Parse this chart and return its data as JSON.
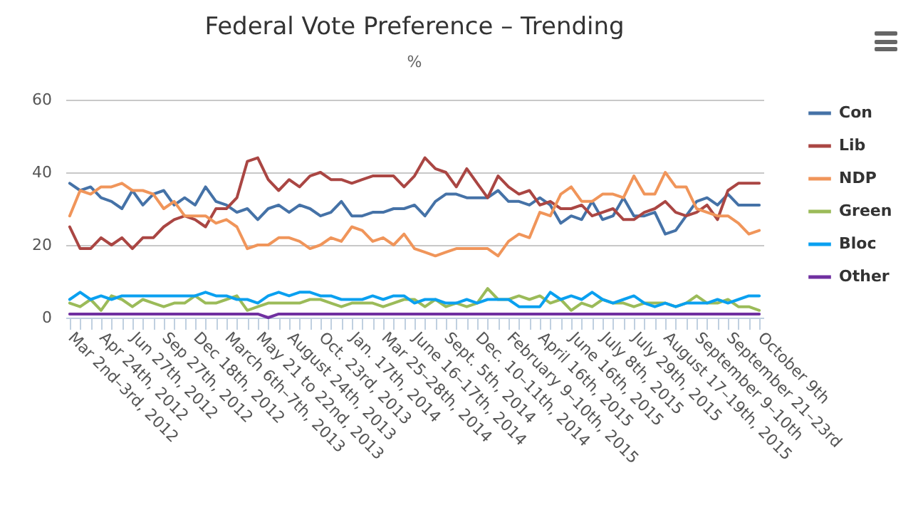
{
  "chart_data": {
    "type": "line",
    "title": "Federal Vote Preference – Trending",
    "subtitle": "%",
    "categories": [
      "Mar 2nd–3rd, 2012",
      null,
      null,
      "Apr 24th, 2012",
      null,
      null,
      "Jun 27th, 2012",
      null,
      null,
      "Sep 27th, 2012",
      null,
      null,
      "Dec 18th, 2012",
      null,
      null,
      "March 6th–7th, 2013",
      null,
      null,
      "May 21 to 22nd, 2013",
      null,
      null,
      "August 24th, 2013",
      null,
      null,
      "Oct. 23rd, 2013",
      null,
      null,
      "Jan. 17th, 2014",
      null,
      null,
      "Mar 25–28th, 2014",
      null,
      null,
      "June 16–17th, 2014",
      null,
      null,
      "Sept. 5th, 2014",
      null,
      null,
      "Dec. 10–11th, 2014",
      null,
      null,
      "February 9–10th, 2015",
      null,
      null,
      "April 16th, 2015",
      null,
      null,
      "June 16th, 2015",
      null,
      null,
      "July 8th, 2015",
      null,
      null,
      "July 29th, 2015",
      null,
      null,
      "August 17–19th, 2015",
      null,
      null,
      "September 9–10th",
      null,
      null,
      "September 21–23rd",
      null,
      null,
      "October 9th"
    ],
    "series": [
      {
        "name": "Con",
        "color": "#4572a7",
        "values": [
          37,
          35,
          36,
          33,
          32,
          30,
          35,
          31,
          34,
          35,
          31,
          33,
          31,
          36,
          32,
          31,
          29,
          30,
          27,
          30,
          31,
          29,
          31,
          30,
          28,
          29,
          32,
          28,
          28,
          29,
          29,
          30,
          30,
          31,
          28,
          32,
          34,
          34,
          33,
          33,
          33,
          35,
          32,
          32,
          31,
          33,
          31,
          26,
          28,
          27,
          32,
          27,
          28,
          33,
          28,
          28,
          29,
          23,
          24,
          28,
          32,
          33,
          31,
          34,
          31,
          31,
          31
        ]
      },
      {
        "name": "Lib",
        "color": "#aa4643",
        "values": [
          25,
          19,
          19,
          22,
          20,
          22,
          19,
          22,
          22,
          25,
          27,
          28,
          27,
          25,
          30,
          30,
          33,
          43,
          44,
          38,
          35,
          38,
          36,
          39,
          40,
          38,
          38,
          37,
          38,
          39,
          39,
          39,
          36,
          39,
          44,
          41,
          40,
          36,
          41,
          37,
          33,
          39,
          36,
          34,
          35,
          31,
          32,
          30,
          30,
          31,
          28,
          29,
          30,
          27,
          27,
          29,
          30,
          32,
          29,
          28,
          29,
          31,
          27,
          35,
          37,
          37,
          37
        ]
      },
      {
        "name": "NDP",
        "color": "#f0955a",
        "values": [
          28,
          35,
          34,
          36,
          36,
          37,
          35,
          35,
          34,
          30,
          32,
          28,
          28,
          28,
          26,
          27,
          25,
          19,
          20,
          20,
          22,
          22,
          21,
          19,
          20,
          22,
          21,
          25,
          24,
          21,
          22,
          20,
          23,
          19,
          18,
          17,
          18,
          19,
          19,
          19,
          19,
          17,
          21,
          23,
          22,
          29,
          28,
          34,
          36,
          32,
          32,
          34,
          34,
          33,
          39,
          34,
          34,
          40,
          36,
          36,
          30,
          29,
          28,
          28,
          26,
          23,
          24
        ]
      },
      {
        "name": "Green",
        "color": "#9bbb59",
        "values": [
          4,
          3,
          5,
          2,
          6,
          5,
          3,
          5,
          4,
          3,
          4,
          4,
          6,
          4,
          4,
          5,
          6,
          2,
          3,
          4,
          4,
          4,
          4,
          5,
          5,
          4,
          3,
          4,
          4,
          4,
          3,
          4,
          5,
          5,
          3,
          5,
          3,
          4,
          3,
          4,
          8,
          5,
          5,
          6,
          5,
          6,
          4,
          5,
          2,
          4,
          3,
          5,
          4,
          4,
          3,
          4,
          4,
          4,
          3,
          4,
          6,
          4,
          4,
          5,
          3,
          3,
          2
        ]
      },
      {
        "name": "Bloc",
        "color": "#0aa0f0",
        "values": [
          5,
          7,
          5,
          6,
          5,
          6,
          6,
          6,
          6,
          6,
          6,
          6,
          6,
          7,
          6,
          6,
          5,
          5,
          4,
          6,
          7,
          6,
          7,
          7,
          6,
          6,
          5,
          5,
          5,
          6,
          5,
          6,
          6,
          4,
          5,
          5,
          4,
          4,
          5,
          4,
          5,
          5,
          5,
          3,
          3,
          3,
          7,
          5,
          6,
          5,
          7,
          5,
          4,
          5,
          6,
          4,
          3,
          4,
          3,
          4,
          4,
          4,
          5,
          4,
          5,
          6,
          6
        ]
      },
      {
        "name": "Other",
        "color": "#7030a0",
        "values": [
          1,
          1,
          1,
          1,
          1,
          1,
          1,
          1,
          1,
          1,
          1,
          1,
          1,
          1,
          1,
          1,
          1,
          1,
          1,
          0,
          1,
          1,
          1,
          1,
          1,
          1,
          1,
          1,
          1,
          1,
          1,
          1,
          1,
          1,
          1,
          1,
          1,
          1,
          1,
          1,
          1,
          1,
          1,
          1,
          1,
          1,
          1,
          1,
          1,
          1,
          1,
          1,
          1,
          1,
          1,
          1,
          1,
          1,
          1,
          1,
          1,
          1,
          1,
          1,
          1,
          1,
          1
        ]
      }
    ],
    "ylim": [
      0,
      60
    ],
    "yticks": [
      0,
      20,
      40,
      60
    ],
    "grid": "y",
    "legend": "right"
  }
}
